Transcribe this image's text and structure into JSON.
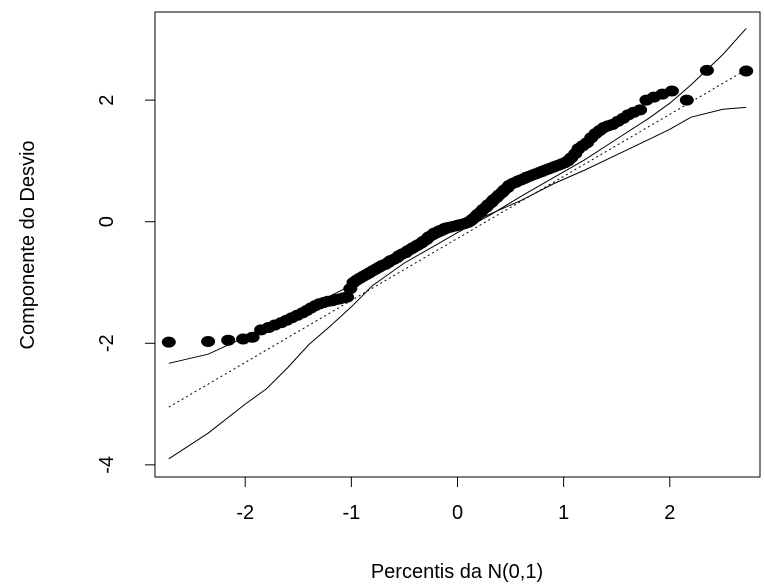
{
  "chart_data": {
    "type": "scatter",
    "title": "",
    "xlabel": "Percentis da N(0,1)",
    "ylabel": "Componente do Desvio",
    "xlim": [
      -2.85,
      2.85
    ],
    "ylim": [
      -4.2,
      3.45
    ],
    "xticks": [
      -2,
      -1,
      0,
      1,
      2
    ],
    "xtick_labels": [
      "-2",
      "-1",
      "0",
      "1",
      "2"
    ],
    "yticks": [
      -4,
      -2,
      0,
      2
    ],
    "ytick_labels": [
      "-4",
      "-2",
      "0",
      "2"
    ],
    "grid": false,
    "legend": "none",
    "series": [
      {
        "kind": "points",
        "color": "#000000",
        "x": [
          -2.72,
          -2.35,
          -2.16,
          -2.02,
          -1.93,
          -1.85,
          -1.78,
          -1.72,
          -1.66,
          -1.61,
          -1.56,
          -1.51,
          -1.46,
          -1.42,
          -1.38,
          -1.34,
          -1.3,
          -1.26,
          -1.22,
          -1.18,
          -1.14,
          -1.11,
          -1.07,
          -1.04,
          -1.01,
          -0.98,
          -0.95,
          -0.92,
          -0.89,
          -0.86,
          -0.83,
          -0.8,
          -0.77,
          -0.74,
          -0.71,
          -0.68,
          -0.65,
          -0.63,
          -0.6,
          -0.57,
          -0.55,
          -0.52,
          -0.49,
          -0.47,
          -0.44,
          -0.42,
          -0.39,
          -0.37,
          -0.34,
          -0.32,
          -0.29,
          -0.27,
          -0.24,
          -0.22,
          -0.19,
          -0.17,
          -0.14,
          -0.12,
          -0.1,
          -0.07,
          -0.05,
          -0.02,
          0.0,
          0.02,
          0.05,
          0.07,
          0.1,
          0.12,
          0.14,
          0.17,
          0.19,
          0.22,
          0.24,
          0.27,
          0.29,
          0.32,
          0.34,
          0.37,
          0.39,
          0.42,
          0.44,
          0.47,
          0.49,
          0.52,
          0.55,
          0.57,
          0.6,
          0.63,
          0.65,
          0.68,
          0.71,
          0.74,
          0.77,
          0.8,
          0.83,
          0.86,
          0.89,
          0.92,
          0.95,
          0.98,
          1.01,
          1.04,
          1.07,
          1.11,
          1.14,
          1.18,
          1.22,
          1.26,
          1.3,
          1.34,
          1.38,
          1.42,
          1.46,
          1.51,
          1.56,
          1.61,
          1.66,
          1.72,
          1.78,
          1.85,
          1.93,
          2.02,
          2.16,
          2.35,
          2.72
        ],
        "y": [
          -1.98,
          -1.97,
          -1.95,
          -1.93,
          -1.9,
          -1.78,
          -1.74,
          -1.7,
          -1.66,
          -1.62,
          -1.58,
          -1.54,
          -1.5,
          -1.46,
          -1.42,
          -1.38,
          -1.35,
          -1.33,
          -1.31,
          -1.3,
          -1.28,
          -1.27,
          -1.25,
          -1.24,
          -1.1,
          -1.0,
          -0.96,
          -0.93,
          -0.9,
          -0.87,
          -0.84,
          -0.81,
          -0.78,
          -0.75,
          -0.72,
          -0.7,
          -0.67,
          -0.64,
          -0.62,
          -0.59,
          -0.56,
          -0.53,
          -0.51,
          -0.48,
          -0.45,
          -0.43,
          -0.4,
          -0.38,
          -0.35,
          -0.32,
          -0.29,
          -0.25,
          -0.22,
          -0.19,
          -0.17,
          -0.15,
          -0.13,
          -0.11,
          -0.1,
          -0.09,
          -0.08,
          -0.07,
          -0.06,
          -0.05,
          -0.04,
          -0.03,
          -0.01,
          0.01,
          0.04,
          0.08,
          0.12,
          0.16,
          0.2,
          0.24,
          0.28,
          0.32,
          0.36,
          0.4,
          0.44,
          0.48,
          0.52,
          0.56,
          0.6,
          0.63,
          0.65,
          0.67,
          0.69,
          0.71,
          0.73,
          0.75,
          0.77,
          0.79,
          0.81,
          0.83,
          0.85,
          0.87,
          0.89,
          0.91,
          0.93,
          0.95,
          0.97,
          1.0,
          1.05,
          1.12,
          1.2,
          1.25,
          1.3,
          1.38,
          1.45,
          1.5,
          1.55,
          1.58,
          1.6,
          1.65,
          1.7,
          1.76,
          1.8,
          1.84,
          2.0,
          2.05,
          2.1,
          2.15,
          2.0,
          2.49,
          2.48
        ]
      },
      {
        "kind": "line",
        "style": "dotted",
        "color": "#000000",
        "x": [
          -2.72,
          2.72
        ],
        "y": [
          -3.05,
          2.5
        ]
      },
      {
        "kind": "line",
        "style": "solid",
        "color": "#000000",
        "x": [
          -2.72,
          -2.35,
          -2.0,
          -1.8,
          -1.6,
          -1.4,
          -1.2,
          -1.0,
          -0.8,
          -0.5,
          -0.2,
          0.0,
          0.3,
          0.6,
          0.9,
          1.2,
          1.5,
          1.8,
          2.0,
          2.2,
          2.5,
          2.72
        ],
        "y": [
          -3.9,
          -3.48,
          -3.0,
          -2.75,
          -2.4,
          -2.02,
          -1.72,
          -1.4,
          -1.05,
          -0.68,
          -0.38,
          -0.18,
          0.1,
          0.42,
          0.72,
          1.02,
          1.36,
          1.7,
          1.95,
          2.25,
          2.75,
          3.18
        ]
      },
      {
        "kind": "line",
        "style": "solid",
        "color": "#000000",
        "x": [
          -2.72,
          -2.35,
          -2.0,
          -1.8,
          -1.6,
          -1.4,
          -1.2,
          -1.0,
          -0.8,
          -0.5,
          -0.2,
          0.0,
          0.3,
          0.6,
          0.9,
          1.2,
          1.5,
          1.8,
          2.0,
          2.2,
          2.5,
          2.72
        ],
        "y": [
          -2.33,
          -2.18,
          -1.9,
          -1.75,
          -1.58,
          -1.4,
          -1.22,
          -1.05,
          -0.82,
          -0.55,
          -0.28,
          -0.12,
          0.12,
          0.35,
          0.62,
          0.85,
          1.1,
          1.35,
          1.52,
          1.72,
          1.85,
          1.88
        ]
      }
    ]
  }
}
